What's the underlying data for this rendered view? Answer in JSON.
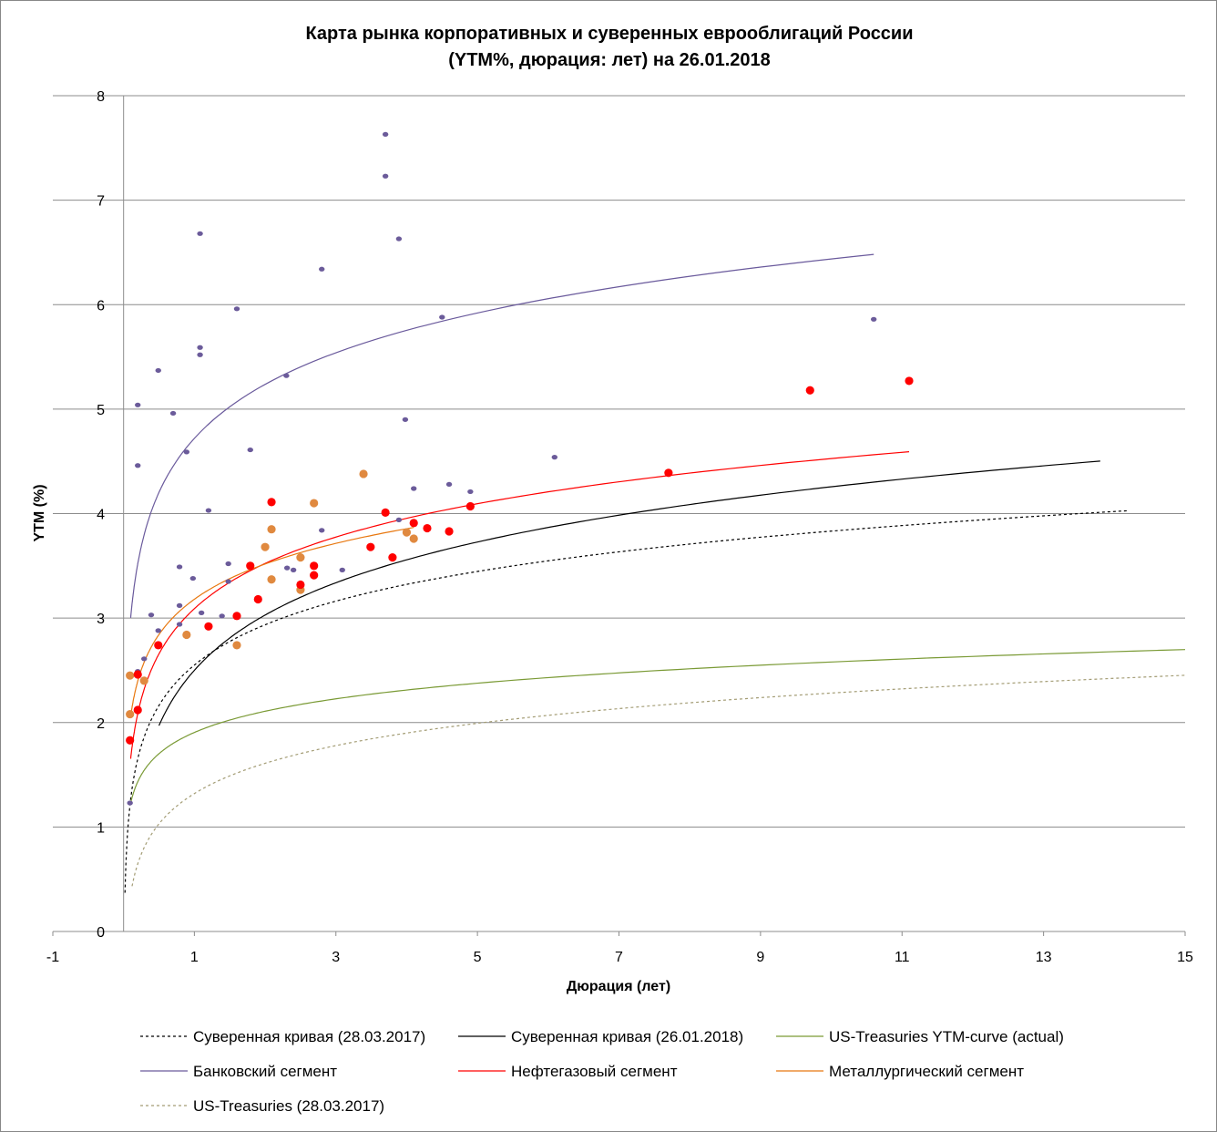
{
  "chart_data": {
    "type": "scatter",
    "title": [
      "Карта рынка корпоративных и суверенных еврооблигаций России",
      "(YTM%, дюрация: лет) на 26.01.2018"
    ],
    "xlabel": "Дюрация (лет)",
    "ylabel": "YTM (%)",
    "xlim": [
      -1,
      15
    ],
    "ylim": [
      0,
      8
    ],
    "xticks": [
      -1,
      1,
      3,
      5,
      7,
      9,
      11,
      13,
      15
    ],
    "yticks": [
      0,
      1,
      2,
      3,
      4,
      5,
      6,
      7,
      8
    ],
    "grid": "horizontal",
    "legend_position": "bottom",
    "colors": {
      "bank": "#6b5b9a",
      "bank_line": "#6a5a9c",
      "oil": "#ff0000",
      "metal": "#e0893f",
      "metal_line": "#e87810",
      "sov": "#000000",
      "ust": "#7a9a35",
      "ust_old": "#a39c74",
      "grid": "#8c8c8c"
    },
    "series": [
      {
        "name": "Банковский сегмент",
        "kind": "points",
        "color": "bank",
        "size": "small",
        "points": [
          [
            3.7,
            7.63
          ],
          [
            3.7,
            7.23
          ],
          [
            3.89,
            6.63
          ],
          [
            1.08,
            6.68
          ],
          [
            2.8,
            6.34
          ],
          [
            1.6,
            5.96
          ],
          [
            4.5,
            5.88
          ],
          [
            10.6,
            5.86
          ],
          [
            1.08,
            5.59
          ],
          [
            1.08,
            5.52
          ],
          [
            0.49,
            5.37
          ],
          [
            2.3,
            5.32
          ],
          [
            0.2,
            5.04
          ],
          [
            0.7,
            4.96
          ],
          [
            3.98,
            4.9
          ],
          [
            0.2,
            4.46
          ],
          [
            0.89,
            4.59
          ],
          [
            1.79,
            4.61
          ],
          [
            6.09,
            4.54
          ],
          [
            4.1,
            4.24
          ],
          [
            4.6,
            4.28
          ],
          [
            4.9,
            4.21
          ],
          [
            1.2,
            4.03
          ],
          [
            3.89,
            3.94
          ],
          [
            2.8,
            3.84
          ],
          [
            0.79,
            3.49
          ],
          [
            1.48,
            3.52
          ],
          [
            2.31,
            3.48
          ],
          [
            2.4,
            3.46
          ],
          [
            3.09,
            3.46
          ],
          [
            0.98,
            3.38
          ],
          [
            1.48,
            3.35
          ],
          [
            0.39,
            3.03
          ],
          [
            0.79,
            3.12
          ],
          [
            1.1,
            3.05
          ],
          [
            1.39,
            3.02
          ],
          [
            0.49,
            2.88
          ],
          [
            0.79,
            2.94
          ],
          [
            0.29,
            2.61
          ],
          [
            0.2,
            2.49
          ],
          [
            0.09,
            1.23
          ]
        ]
      },
      {
        "name": "Металлургический сегмент",
        "kind": "points",
        "color": "metal",
        "size": "large",
        "points": [
          [
            3.39,
            4.38
          ],
          [
            2.69,
            4.1
          ],
          [
            2.09,
            3.85
          ],
          [
            2.0,
            3.68
          ],
          [
            2.5,
            3.58
          ],
          [
            4.0,
            3.82
          ],
          [
            4.1,
            3.76
          ],
          [
            2.09,
            3.37
          ],
          [
            2.5,
            3.27
          ],
          [
            0.89,
            2.84
          ],
          [
            1.6,
            2.74
          ],
          [
            0.09,
            2.45
          ],
          [
            0.29,
            2.4
          ],
          [
            0.09,
            2.08
          ]
        ]
      },
      {
        "name": "Нефтегазовый сегмент",
        "kind": "points",
        "color": "oil",
        "size": "large",
        "points": [
          [
            2.09,
            4.11
          ],
          [
            3.7,
            4.01
          ],
          [
            4.9,
            4.07
          ],
          [
            4.1,
            3.91
          ],
          [
            4.29,
            3.86
          ],
          [
            4.6,
            3.83
          ],
          [
            3.49,
            3.68
          ],
          [
            3.8,
            3.58
          ],
          [
            1.79,
            3.5
          ],
          [
            2.69,
            3.5
          ],
          [
            2.69,
            3.41
          ],
          [
            2.5,
            3.32
          ],
          [
            1.9,
            3.18
          ],
          [
            1.6,
            3.02
          ],
          [
            1.2,
            2.92
          ],
          [
            0.49,
            2.74
          ],
          [
            0.2,
            2.46
          ],
          [
            0.2,
            2.12
          ],
          [
            0.09,
            1.83
          ],
          [
            9.7,
            5.18
          ],
          [
            11.1,
            5.27
          ],
          [
            7.7,
            4.39
          ]
        ]
      }
    ],
    "curves": [
      {
        "name": "Суверенная кривая (28.03.2017)",
        "color": "sov",
        "dash": true,
        "fit": "log",
        "a": 2.55,
        "b": 0.557,
        "xrange": [
          0.02,
          14.2
        ]
      },
      {
        "name": "Суверенная кривая (26.01.2018)",
        "color": "sov",
        "dash": false,
        "fit": "log",
        "a": 2.5,
        "b": 0.763,
        "xrange": [
          0.5,
          13.8
        ]
      },
      {
        "name": "US-Treasuries YTM-curve (actual)",
        "color": "ust",
        "dash": false,
        "fit": "log",
        "a": 1.905,
        "b": 0.293,
        "xrange": [
          0.1,
          15
        ]
      },
      {
        "name": "Банковский сегмент",
        "color": "bank_line",
        "dash": false,
        "fit": "log",
        "a": 4.72,
        "b": 0.746,
        "xrange": [
          0.1,
          10.6
        ]
      },
      {
        "name": "Нефтегазовый сегмент",
        "color": "oil",
        "dash": false,
        "fit": "log",
        "a": 3.09,
        "b": 0.624,
        "xrange": [
          0.1,
          11.1
        ]
      },
      {
        "name": "Металлургический сегмент",
        "color": "metal_line",
        "dash": false,
        "fit": "log",
        "a": 3.18,
        "b": 0.487,
        "xrange": [
          0.1,
          4.1
        ]
      },
      {
        "name": "US-Treasuries (28.03.2017)",
        "color": "ust_old",
        "dash": true,
        "fit": "log",
        "a": 1.32,
        "b": 0.418,
        "xrange": [
          0.12,
          15
        ]
      }
    ]
  }
}
